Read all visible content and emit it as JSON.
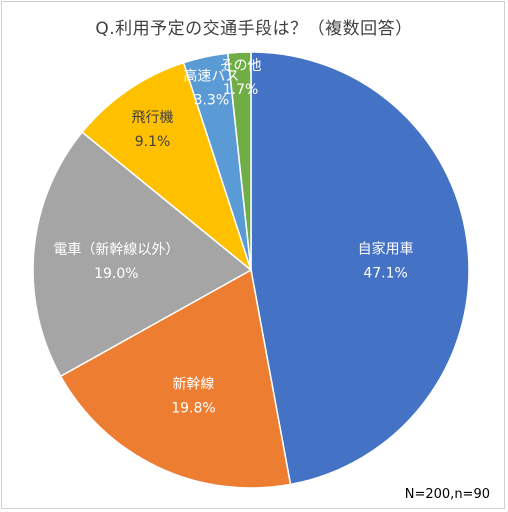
{
  "chart_data": {
    "type": "pie",
    "title": "Q.利用予定の交通手段は？（複数回答）",
    "note": "N=200,n=90",
    "slices": [
      {
        "label": "自家用車",
        "value": 47.1,
        "value_text": "47.1%",
        "color": "#4472C4",
        "label_color": "#ffffff"
      },
      {
        "label": "新幹線",
        "value": 19.8,
        "value_text": "19.8%",
        "color": "#ED7D31",
        "label_color": "#ffffff"
      },
      {
        "label": "電車（新幹線以外）",
        "value": 19.0,
        "value_text": "19.0%",
        "color": "#A5A5A5",
        "label_color": "#ffffff"
      },
      {
        "label": "飛行機",
        "value": 9.1,
        "value_text": "9.1%",
        "color": "#FFC000",
        "label_color": "#404040"
      },
      {
        "label": "高速バス",
        "value": 3.3,
        "value_text": "3.3%",
        "color": "#5B9BD5",
        "label_color": "#ffffff"
      },
      {
        "label": "その他",
        "value": 1.7,
        "value_text": "1.7%",
        "color": "#70AD47",
        "label_color": "#ffffff"
      }
    ]
  }
}
